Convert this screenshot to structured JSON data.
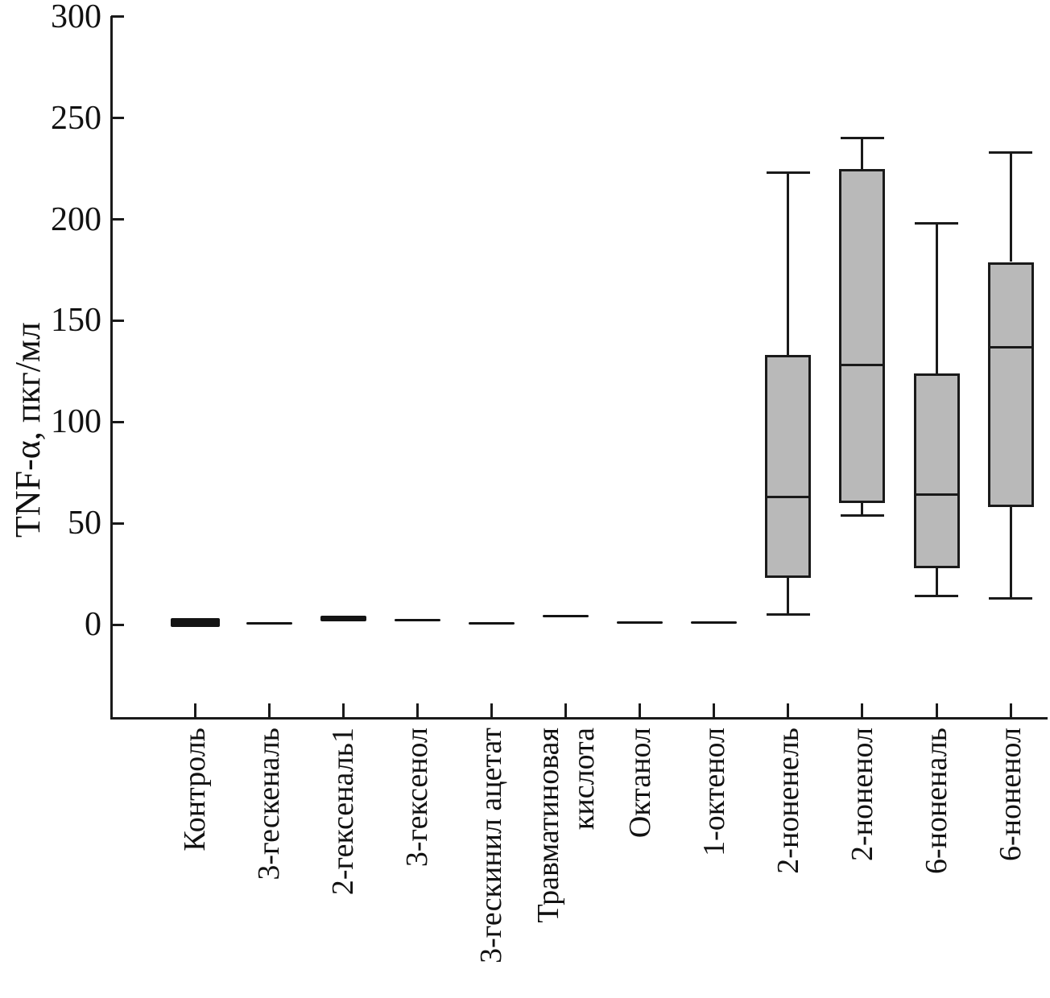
{
  "chart_data": {
    "type": "boxplot",
    "title": "",
    "ylabel": "TNF-α, пкг/мл",
    "xlabel": "",
    "yticks": [
      0,
      50,
      100,
      150,
      200,
      250,
      300
    ],
    "ylim": [
      -46,
      300
    ],
    "grid": false,
    "legend": null,
    "box_fill_color": "#b9b9b9",
    "line_color": "#1a1a1a",
    "boxes": [
      {
        "label": "Контроль",
        "whisker_low": -1,
        "q1": -1,
        "median": 1,
        "q3": 3,
        "whisker_high": 3,
        "flat": true
      },
      {
        "label": "3-гескеналь",
        "whisker_low": 0.5,
        "q1": 0.5,
        "median": 0.5,
        "q3": 0.5,
        "whisker_high": 0.5,
        "flat": true
      },
      {
        "label": "2-гексеналь1",
        "whisker_low": 1.5,
        "q1": 1.5,
        "median": 3,
        "q3": 4.5,
        "whisker_high": 4.5,
        "flat": true
      },
      {
        "label": "3-гексенол",
        "whisker_low": 2,
        "q1": 2,
        "median": 2,
        "q3": 2,
        "whisker_high": 2,
        "flat": true
      },
      {
        "label": "3-гескинил ацетат",
        "whisker_low": 0.5,
        "q1": 0.5,
        "median": 0.5,
        "q3": 0.5,
        "whisker_high": 0.5,
        "flat": true
      },
      {
        "label": "Травматиновая\nкислота",
        "whisker_low": 4,
        "q1": 4,
        "median": 4,
        "q3": 4,
        "whisker_high": 4,
        "flat": true
      },
      {
        "label": "Октанол",
        "whisker_low": 1,
        "q1": 1,
        "median": 1,
        "q3": 1,
        "whisker_high": 1,
        "flat": true
      },
      {
        "label": "1-октенол",
        "whisker_low": 1,
        "q1": 1,
        "median": 1,
        "q3": 1,
        "whisker_high": 1,
        "flat": true
      },
      {
        "label": "2-ноненель",
        "whisker_low": 5,
        "q1": 23,
        "median": 63,
        "q3": 133,
        "whisker_high": 223,
        "flat": false
      },
      {
        "label": "2-ноненол",
        "whisker_low": 54,
        "q1": 60,
        "median": 128,
        "q3": 225,
        "whisker_high": 240,
        "flat": false
      },
      {
        "label": "6-ноненаль",
        "whisker_low": 14,
        "q1": 28,
        "median": 64,
        "q3": 124,
        "whisker_high": 198,
        "flat": false
      },
      {
        "label": "6-ноненол",
        "whisker_low": 13,
        "q1": 58,
        "median": 137,
        "q3": 179,
        "whisker_high": 233,
        "flat": false
      }
    ]
  }
}
